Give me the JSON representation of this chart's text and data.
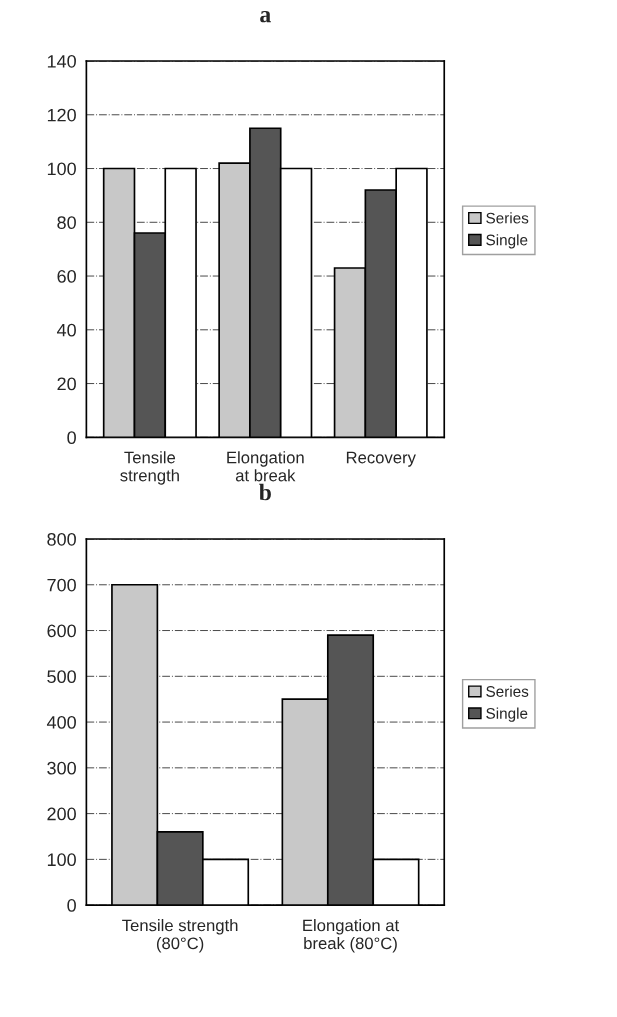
{
  "chart_data": [
    {
      "type": "bar",
      "title": "a",
      "categories": [
        "Tensile\nstrength",
        "Elongation\nat break",
        "Recovery"
      ],
      "series": [
        {
          "name": "Series",
          "color": "#c8c8c8",
          "values": [
            100,
            102,
            63
          ]
        },
        {
          "name": "Single",
          "color": "#555555",
          "values": [
            76,
            115,
            92
          ]
        },
        {
          "color": "#ffffff",
          "values": [
            100,
            100,
            100
          ]
        }
      ],
      "ylim": [
        0,
        140
      ],
      "yticks": [
        0,
        20,
        40,
        60,
        80,
        100,
        120,
        140
      ],
      "grid": "y",
      "legend": "right"
    },
    {
      "type": "bar",
      "title": "b",
      "categories": [
        "Tensile strength\n(80°C)",
        "Elongation at\nbreak (80°C)"
      ],
      "series": [
        {
          "name": "Series",
          "color": "#c8c8c8",
          "values": [
            700,
            450
          ]
        },
        {
          "name": "Single",
          "color": "#555555",
          "values": [
            160,
            590
          ]
        },
        {
          "color": "#ffffff",
          "values": [
            100,
            100
          ]
        }
      ],
      "ylim": [
        0,
        800
      ],
      "yticks": [
        0,
        100,
        200,
        300,
        400,
        500,
        600,
        700,
        800
      ],
      "grid": "y",
      "legend": "right"
    }
  ]
}
